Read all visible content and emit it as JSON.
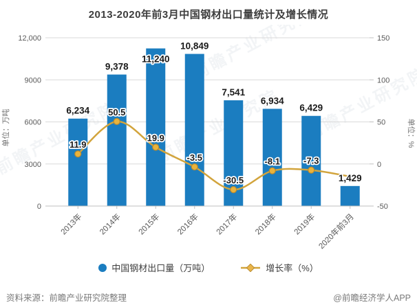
{
  "title": "2013-2020年前3月中国钢材出口量统计及增长情况",
  "watermark_text": "前瞻产业研究院",
  "chart_data": {
    "type": "combo-bar-line",
    "categories": [
      "2013年",
      "2014年",
      "2015年",
      "2016年",
      "2017年",
      "2018年",
      "2019年",
      "2020年前3月"
    ],
    "series": [
      {
        "name": "中国钢材出口量（万吨）",
        "type": "bar",
        "axis": "left",
        "color": "#1b7dc0",
        "values": [
          6234,
          9378,
          11240,
          10849,
          7541,
          6934,
          6429,
          1429
        ],
        "labels": [
          "6,234",
          "9,378",
          "11,240",
          "10,849",
          "7,541",
          "6,934",
          "6,429",
          "1,429"
        ]
      },
      {
        "name": "增长率（%）",
        "type": "line",
        "axis": "right",
        "color": "#d2a43c",
        "marker_fill": "#e9b33c",
        "marker_stroke": "#b98a2e",
        "values": [
          11.9,
          50.5,
          19.9,
          -3.5,
          -30.5,
          -8.1,
          -7.3,
          -15
        ],
        "labels": [
          "11.9",
          "50.5",
          "19.9",
          "-3.5",
          "-30.5",
          "-8.1",
          "-7.3",
          ""
        ]
      }
    ],
    "left_axis": {
      "title": "单位：万吨",
      "tick_labels": [
        "12,000",
        "9000",
        "6000",
        "3000",
        "0"
      ],
      "tick_values": [
        12000,
        9000,
        6000,
        3000,
        0
      ],
      "min": 0,
      "max": 12000
    },
    "right_axis": {
      "title": "单位：%",
      "tick_labels": [
        "150",
        "100",
        "50",
        "0",
        "-50"
      ],
      "tick_values": [
        150,
        100,
        50,
        0,
        -50
      ],
      "min": -50,
      "max": 150
    },
    "grid": true,
    "legend_position": "bottom"
  },
  "legend": {
    "items": [
      {
        "label": "中国钢材出口量（万吨）",
        "marker": "circle",
        "color": "#1b7dc0"
      },
      {
        "label": "增长率（%）",
        "marker": "line-diamond",
        "color": "#d2a43c",
        "fill": "#eab54a",
        "stroke": "#b98a2e"
      }
    ]
  },
  "footer": {
    "source": "资料来源：前瞻产业研究院整理",
    "credit": "@前瞻经济学人APP"
  }
}
